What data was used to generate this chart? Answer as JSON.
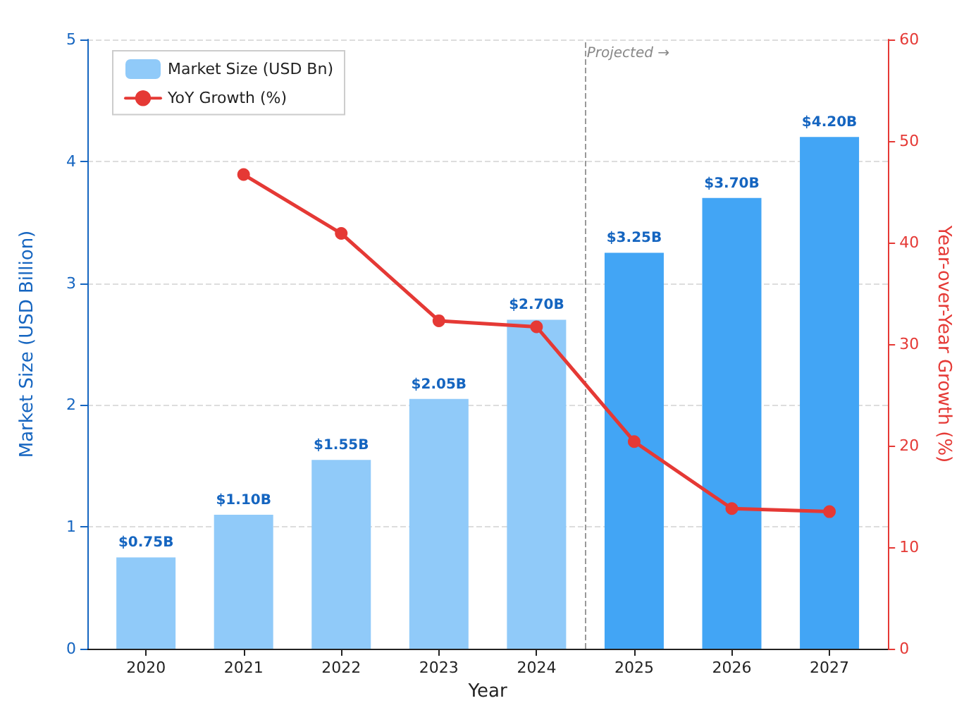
{
  "chart_data": {
    "type": "bar",
    "xlabel": "Year",
    "ylabel": "Market Size (USD Billion)",
    "y2label": "Year-over-Year Growth (%)",
    "x": [
      2020,
      2021,
      2022,
      2023,
      2024,
      2025,
      2026,
      2027
    ],
    "xlim": [
      2019.4,
      2027.6
    ],
    "xticks": [
      2020,
      2021,
      2022,
      2023,
      2024,
      2025,
      2026,
      2027
    ],
    "ylim": [
      0,
      5
    ],
    "yticks": [
      0,
      1,
      2,
      3,
      4,
      5
    ],
    "y2lim": [
      0,
      60
    ],
    "y2ticks": [
      0,
      10,
      20,
      30,
      40,
      50,
      60
    ],
    "series": [
      {
        "name": "Market Size (USD Bn)",
        "color": "#90caf9",
        "colors": [
          "#90caf9",
          "#90caf9",
          "#90caf9",
          "#90caf9",
          "#90caf9",
          "#42a5f5",
          "#42a5f5",
          "#42a5f5"
        ],
        "values": [
          0.75,
          1.1,
          1.55,
          2.05,
          2.7,
          3.25,
          3.7,
          4.2
        ],
        "value_labels": [
          "$0.75B",
          "$1.10B",
          "$1.55B",
          "$2.05B",
          "$2.70B",
          "$3.25B",
          "$3.70B",
          "$4.20B"
        ]
      },
      {
        "name": "YoY Growth (%)",
        "type": "line",
        "axis": "y2",
        "color": "#e53935",
        "marker": "circle",
        "line_style": "solid",
        "values": [
          null,
          46.7,
          40.9,
          32.3,
          31.7,
          20.4,
          13.8,
          13.5
        ]
      }
    ],
    "ref_lines": [
      {
        "axis": "x",
        "value": 2024.5,
        "label": "Projected →",
        "color": "#999999",
        "line_style": "dashed"
      }
    ],
    "grid": "y",
    "legend": "top left"
  }
}
